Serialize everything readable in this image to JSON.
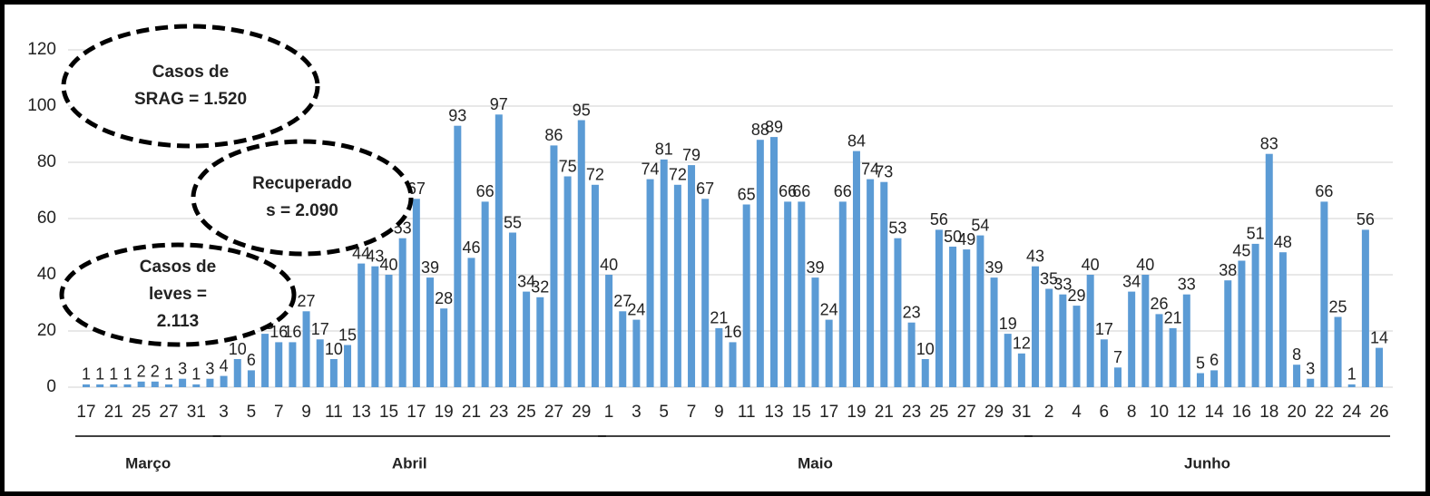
{
  "chart_data": {
    "type": "bar",
    "color": "#5b9bd5",
    "grid": true,
    "ylim": [
      0,
      120
    ],
    "yticks": [
      0,
      20,
      40,
      60,
      80,
      100,
      120
    ],
    "annotations": [
      [
        "Casos de",
        "SRAG = 1.520"
      ],
      [
        "Recuperado",
        "s = 2.090"
      ],
      [
        "Casos de",
        "leves =",
        "2.113"
      ]
    ],
    "groups": [
      {
        "label": "Março",
        "categories": [
          "17",
          null,
          "21",
          null,
          "25",
          null,
          "27",
          null,
          "31",
          null
        ],
        "values": [
          1,
          1,
          1,
          1,
          2,
          2,
          1,
          3,
          1,
          3
        ]
      },
      {
        "label": "Abril",
        "categories": [
          "3",
          null,
          "5",
          null,
          "7",
          null,
          "9",
          null,
          "11",
          null,
          "13",
          null,
          "15",
          null,
          "17",
          null,
          "19",
          null,
          "21",
          null,
          "23",
          null,
          "25",
          null,
          "27",
          null,
          "29",
          null
        ],
        "values": [
          4,
          10,
          6,
          19,
          16,
          16,
          27,
          17,
          10,
          15,
          44,
          43,
          40,
          53,
          67,
          39,
          28,
          93,
          46,
          66,
          97,
          55,
          34,
          32,
          86,
          75,
          95,
          72
        ]
      },
      {
        "label": "Maio",
        "categories": [
          "1",
          null,
          "3",
          null,
          "5",
          null,
          "7",
          null,
          "9",
          null,
          "11",
          null,
          "13",
          null,
          "15",
          null,
          "17",
          null,
          "19",
          null,
          "21",
          null,
          "23",
          null,
          "25",
          null,
          "27",
          null,
          "29",
          null,
          "31"
        ],
        "values": [
          40,
          27,
          24,
          74,
          81,
          72,
          79,
          67,
          21,
          16,
          65,
          88,
          89,
          66,
          66,
          39,
          24,
          66,
          84,
          74,
          73,
          53,
          23,
          10,
          56,
          50,
          49,
          54,
          39,
          19,
          12
        ]
      },
      {
        "label": "Junho",
        "categories": [
          null,
          "2",
          null,
          "4",
          null,
          "6",
          null,
          "8",
          null,
          "10",
          null,
          "12",
          null,
          "14",
          null,
          "16",
          null,
          "18",
          null,
          "20",
          null,
          "22",
          null,
          "24",
          null,
          "26"
        ],
        "values": [
          43,
          35,
          33,
          29,
          40,
          17,
          7,
          34,
          40,
          26,
          21,
          33,
          5,
          6,
          38,
          45,
          51,
          83,
          48,
          8,
          3,
          66,
          25,
          1,
          56,
          14
        ]
      }
    ]
  }
}
